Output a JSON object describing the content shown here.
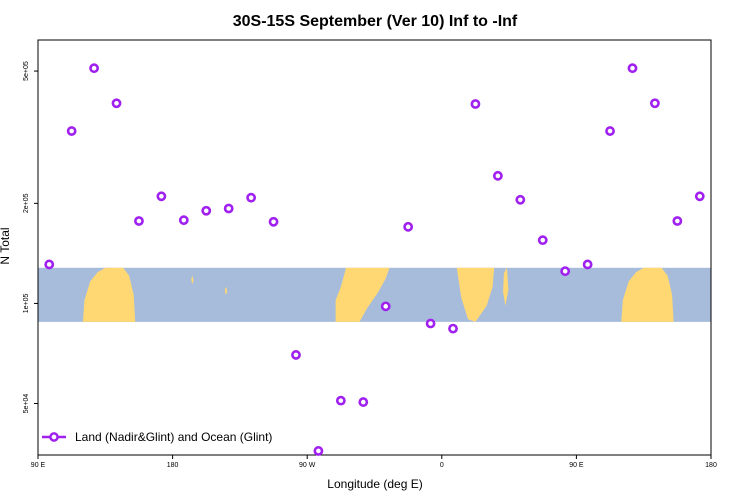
{
  "chart_data": {
    "type": "scatter",
    "title": "30S-15S September (Ver 10)   Inf to -Inf",
    "xlabel": "Longitude (deg E)",
    "ylabel": "N Total",
    "x_ticks": [
      {
        "value": 0,
        "label": "90 E"
      },
      {
        "value": 180,
        "label": "180"
      },
      {
        "value": 360,
        "label": "90 W"
      },
      {
        "value": 540,
        "label": "0"
      },
      {
        "value": 720,
        "label": "90 E"
      },
      {
        "value": 900,
        "label": "180"
      }
    ],
    "y_scale": "log",
    "y_ticks": [
      {
        "value": 50000,
        "label": "5e+04"
      },
      {
        "value": 100000,
        "label": "1e+05"
      },
      {
        "value": 200000,
        "label": "2e+05"
      },
      {
        "value": 500000,
        "label": "5e+05"
      }
    ],
    "xlim": [
      0,
      900
    ],
    "ylim": [
      35000,
      620000
    ],
    "map_band": {
      "ylim": [
        88000,
        128000
      ],
      "ocean_color": "#a7bcdb",
      "land_color": "#ffd873"
    },
    "series": [
      {
        "name": "Land (Nadir&Glint) and Ocean (Glint)",
        "color": "#a020f0",
        "points": [
          {
            "x": 15,
            "y": 131000
          },
          {
            "x": 45,
            "y": 330000
          },
          {
            "x": 75,
            "y": 510000
          },
          {
            "x": 105,
            "y": 400000
          },
          {
            "x": 135,
            "y": 177000
          },
          {
            "x": 165,
            "y": 210000
          },
          {
            "x": 195,
            "y": 178000
          },
          {
            "x": 225,
            "y": 190000
          },
          {
            "x": 255,
            "y": 193000
          },
          {
            "x": 285,
            "y": 208000
          },
          {
            "x": 315,
            "y": 176000
          },
          {
            "x": 345,
            "y": 70000
          },
          {
            "x": 375,
            "y": 36000
          },
          {
            "x": 405,
            "y": 51000
          },
          {
            "x": 435,
            "y": 50500
          },
          {
            "x": 465,
            "y": 98000
          },
          {
            "x": 495,
            "y": 170000
          },
          {
            "x": 525,
            "y": 87000
          },
          {
            "x": 555,
            "y": 84000
          },
          {
            "x": 585,
            "y": 398000
          },
          {
            "x": 615,
            "y": 242000
          },
          {
            "x": 645,
            "y": 205000
          },
          {
            "x": 675,
            "y": 155000
          },
          {
            "x": 705,
            "y": 125000
          },
          {
            "x": 735,
            "y": 131000
          },
          {
            "x": 765,
            "y": 330000
          },
          {
            "x": 795,
            "y": 510000
          },
          {
            "x": 825,
            "y": 400000
          },
          {
            "x": 855,
            "y": 177000
          },
          {
            "x": 885,
            "y": 210000
          }
        ]
      }
    ],
    "legend_position": "bottom-left"
  }
}
